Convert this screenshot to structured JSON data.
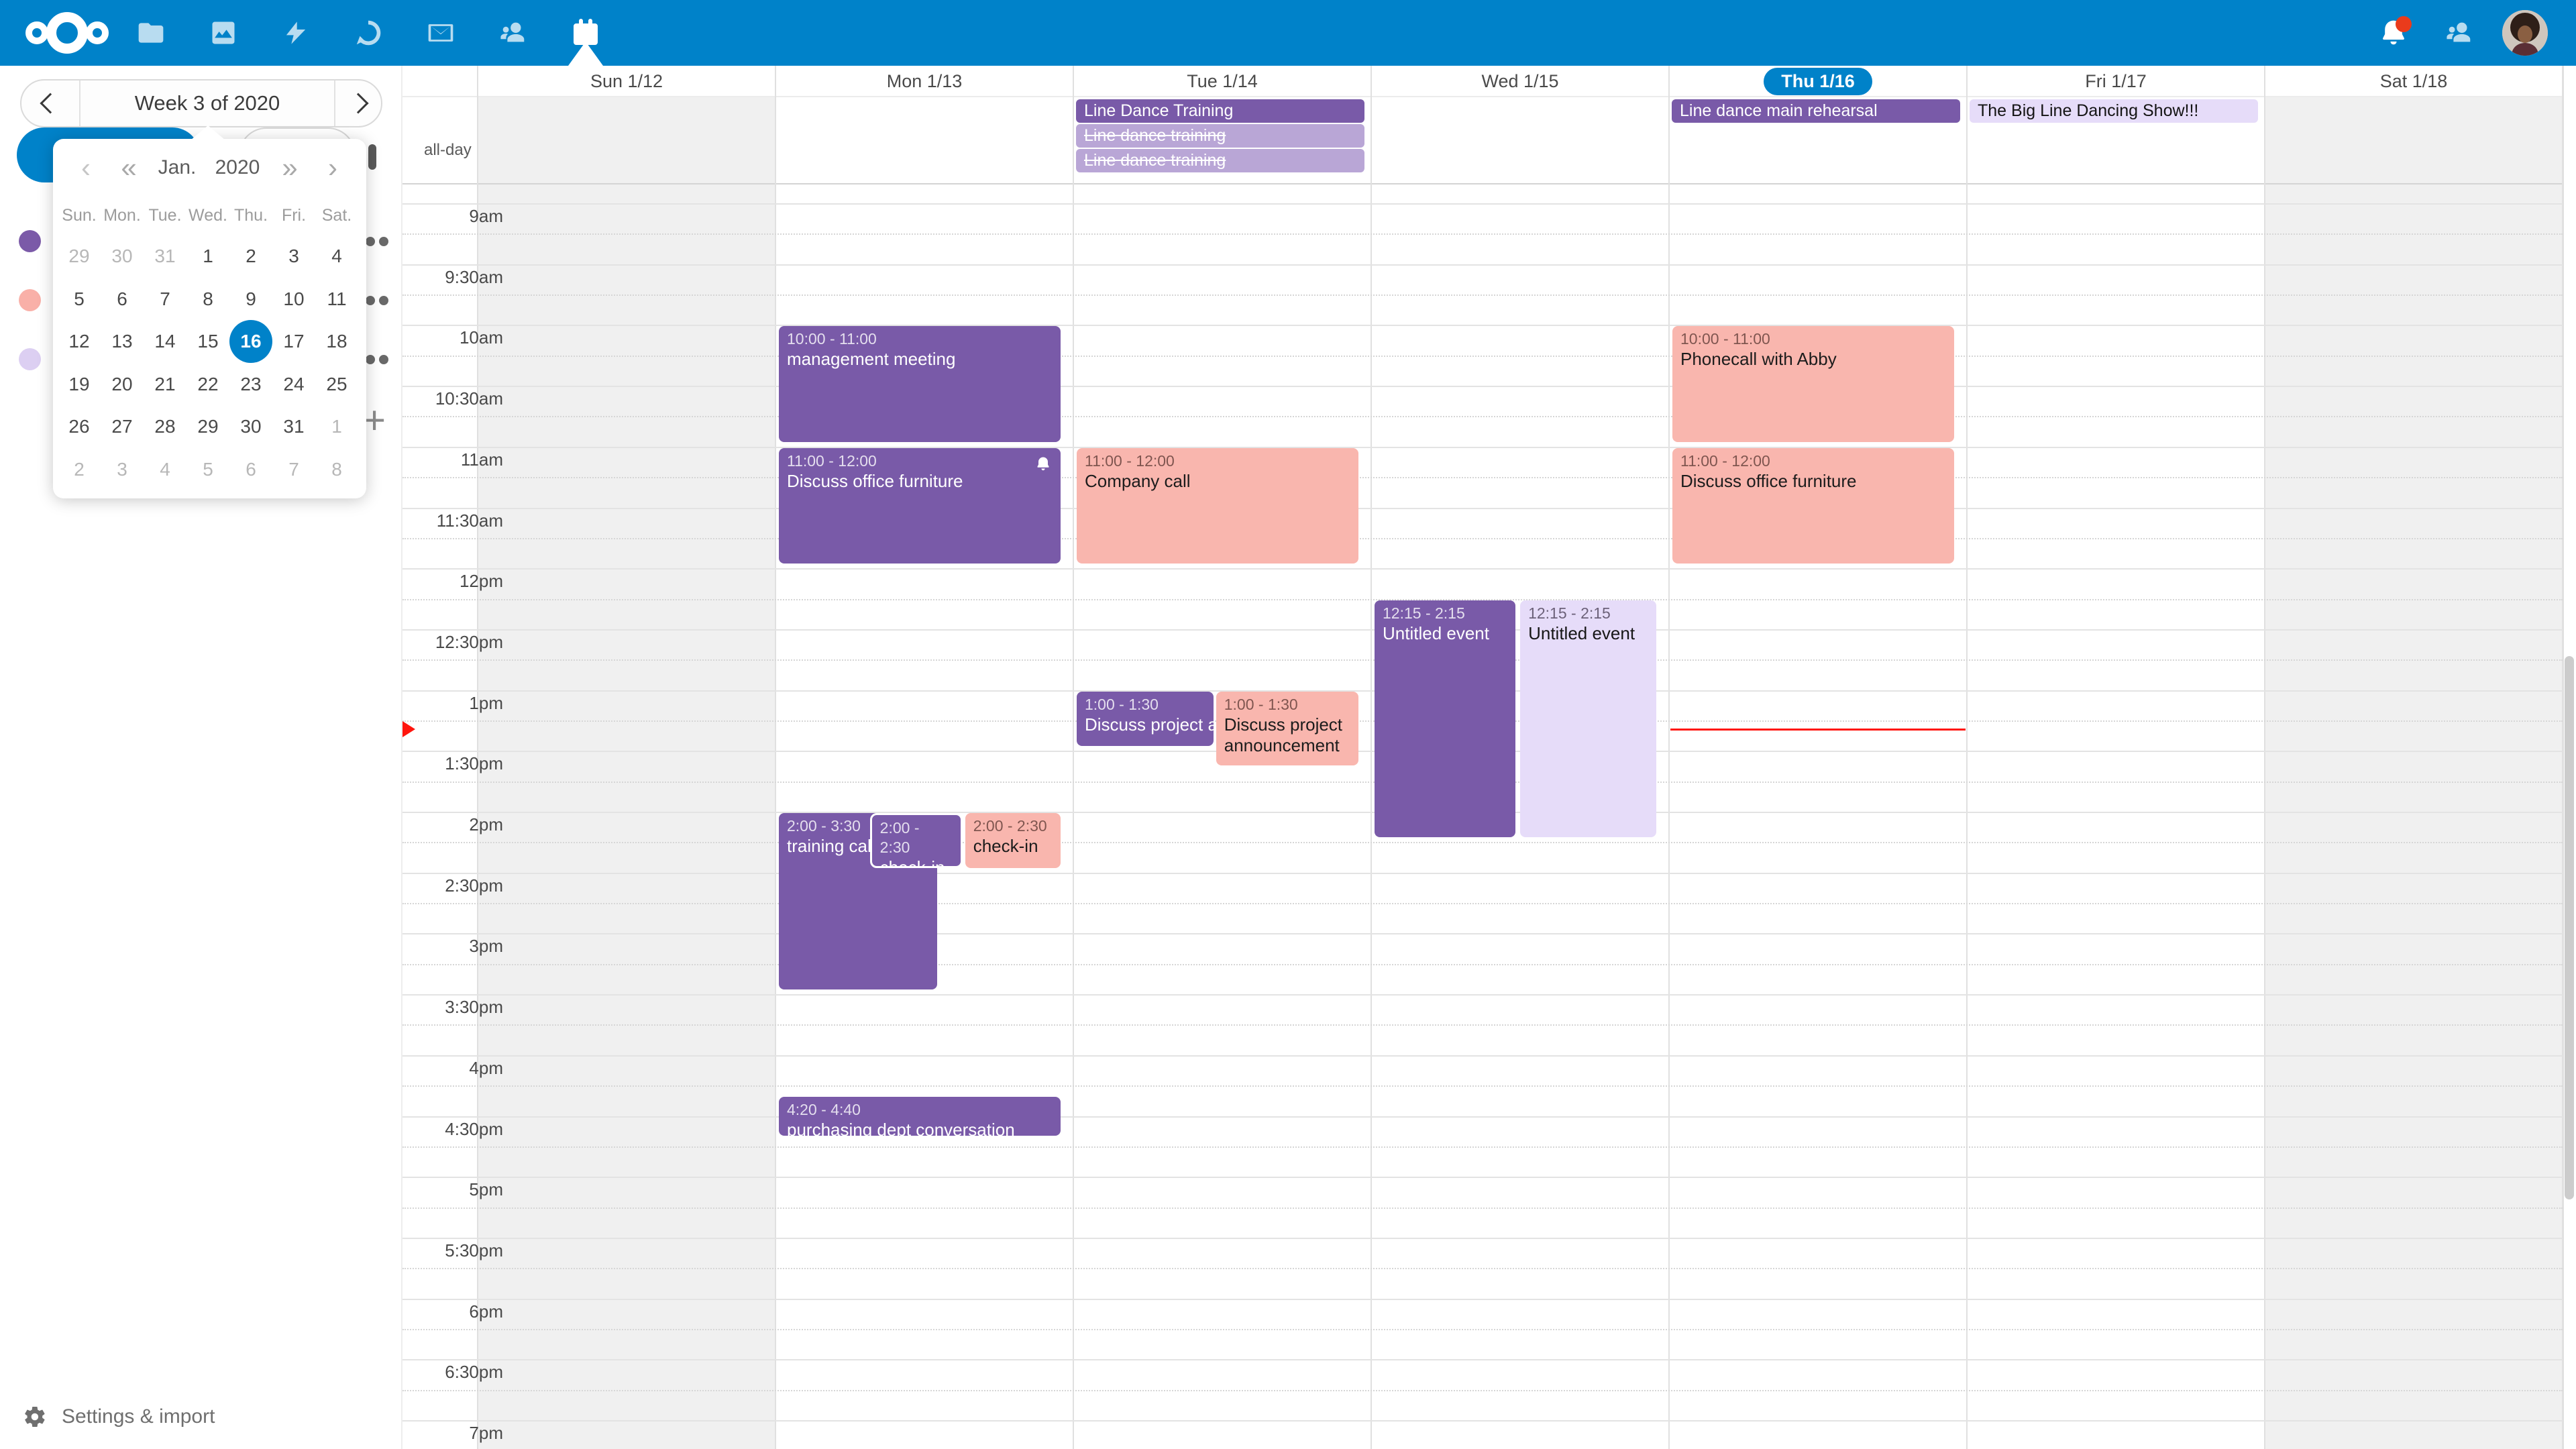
{
  "colors": {
    "accent": "#0082c9",
    "purple": "#795aa8",
    "light_purple": "#b9a6d6",
    "lavender": "#e6dcf9",
    "pink": "#f9b6ae",
    "now_indicator": "#ff150d",
    "notification_dot": "#ea3b1c"
  },
  "topbar": {
    "apps": [
      "files",
      "photos",
      "activity",
      "talk",
      "mail",
      "contacts",
      "calendar"
    ],
    "active_app": "calendar"
  },
  "sidebar": {
    "week_label": "Week 3 of 2020",
    "calendars": [
      {
        "color": "#7b5aa8"
      },
      {
        "color": "#f9b0a8"
      },
      {
        "color": "#dccff2"
      }
    ],
    "settings_label": "Settings & import"
  },
  "datepicker": {
    "month": "Jan.",
    "year": "2020",
    "prev_glyph": "‹",
    "prev_year_glyph": "«",
    "next_year_glyph": "»",
    "next_glyph": "›",
    "weekdays": [
      "Sun.",
      "Mon.",
      "Tue.",
      "Wed.",
      "Thu.",
      "Fri.",
      "Sat."
    ],
    "selected_day": 16,
    "days": [
      {
        "n": 29,
        "m": 1
      },
      {
        "n": 30,
        "m": 1
      },
      {
        "n": 31,
        "m": 1
      },
      {
        "n": 1
      },
      {
        "n": 2
      },
      {
        "n": 3
      },
      {
        "n": 4
      },
      {
        "n": 5
      },
      {
        "n": 6
      },
      {
        "n": 7
      },
      {
        "n": 8
      },
      {
        "n": 9
      },
      {
        "n": 10
      },
      {
        "n": 11
      },
      {
        "n": 12
      },
      {
        "n": 13
      },
      {
        "n": 14
      },
      {
        "n": 15
      },
      {
        "n": 16,
        "s": 1
      },
      {
        "n": 17
      },
      {
        "n": 18
      },
      {
        "n": 19
      },
      {
        "n": 20
      },
      {
        "n": 21
      },
      {
        "n": 22
      },
      {
        "n": 23
      },
      {
        "n": 24
      },
      {
        "n": 25
      },
      {
        "n": 26
      },
      {
        "n": 27
      },
      {
        "n": 28
      },
      {
        "n": 29
      },
      {
        "n": 30
      },
      {
        "n": 31
      },
      {
        "n": 1,
        "m": 1
      },
      {
        "n": 2,
        "m": 1
      },
      {
        "n": 3,
        "m": 1
      },
      {
        "n": 4,
        "m": 1
      },
      {
        "n": 5,
        "m": 1
      },
      {
        "n": 6,
        "m": 1
      },
      {
        "n": 7,
        "m": 1
      },
      {
        "n": 8,
        "m": 1
      }
    ]
  },
  "week": {
    "allday_label": "all-day",
    "days": [
      {
        "label": "Sun 1/12",
        "weekend": true
      },
      {
        "label": "Mon 1/13"
      },
      {
        "label": "Tue 1/14"
      },
      {
        "label": "Wed 1/15"
      },
      {
        "label": "Thu 1/16",
        "today": true
      },
      {
        "label": "Fri 1/17"
      },
      {
        "label": "Sat 1/18",
        "weekend": true
      }
    ],
    "time_labels": [
      "9am",
      "9:30am",
      "10am",
      "10:30am",
      "11am",
      "11:30am",
      "12pm",
      "12:30pm",
      "1pm",
      "1:30pm",
      "2pm",
      "2:30pm",
      "3pm",
      "3:30pm",
      "4pm",
      "4:30pm",
      "5pm",
      "5:30pm",
      "6pm",
      "6:30pm",
      "7pm"
    ],
    "allday_events": [
      {
        "day": 2,
        "row": 0,
        "title": "Line Dance Training",
        "style": "purple"
      },
      {
        "day": 2,
        "row": 1,
        "title": "Line dance training",
        "style": "light-purple",
        "strike": true
      },
      {
        "day": 2,
        "row": 2,
        "title": "Line dance training",
        "style": "light-purple",
        "strike": true
      },
      {
        "day": 4,
        "row": 0,
        "title": "Line dance main rehearsal",
        "style": "purple"
      },
      {
        "day": 5,
        "row": 0,
        "title": "The Big Line Dancing Show!!!",
        "style": "lavender"
      }
    ],
    "events": [
      {
        "day": 1,
        "time": "10:00 - 11:00",
        "title": "management meeting",
        "style": "purple",
        "start": 600,
        "end": 660
      },
      {
        "day": 1,
        "time": "11:00 - 12:00",
        "title": "Discuss office furniture",
        "style": "purple",
        "start": 660,
        "end": 720,
        "bell": true
      },
      {
        "day": 1,
        "time": "2:00 - 3:30",
        "title": "training call",
        "style": "purple",
        "start": 840,
        "end": 930,
        "x": 0,
        "w": 0.565
      },
      {
        "day": 1,
        "time": "2:00 - 2:30",
        "title": "check-in",
        "style": "purple",
        "start": 840,
        "end": 870,
        "x": 0.32,
        "w": 0.335,
        "whiteBorder": true
      },
      {
        "day": 1,
        "time": "2:00 - 2:30",
        "title": "check-in",
        "style": "pink",
        "start": 840,
        "end": 870,
        "x": 0.655,
        "w": 0.345
      },
      {
        "day": 1,
        "time": "4:20 - 4:40",
        "title": "purchasing dept conversation",
        "style": "purple",
        "start": 980,
        "end": 1000,
        "minH": 58
      },
      {
        "day": 2,
        "time": "11:00 - 12:00",
        "title": "Company call",
        "style": "pink",
        "start": 660,
        "end": 720
      },
      {
        "day": 2,
        "time": "1:00 - 1:30",
        "title": "Discuss project announcement",
        "style": "purple",
        "start": 780,
        "end": 810,
        "x": 0,
        "w": 0.49,
        "nowrap": true
      },
      {
        "day": 2,
        "time": "1:00 - 1:30",
        "title": "Discuss project announcement",
        "style": "pink",
        "start": 780,
        "end": 810,
        "x": 0.49,
        "w": 0.51,
        "minH": 110
      },
      {
        "day": 3,
        "time": "12:15 - 2:15",
        "title": "Untitled event",
        "style": "purple",
        "start": 735,
        "end": 855,
        "x": 0,
        "w": 0.505
      },
      {
        "day": 3,
        "time": "12:15 - 2:15",
        "title": "Untitled event",
        "style": "lavender",
        "start": 735,
        "end": 855,
        "x": 0.512,
        "w": 0.488
      },
      {
        "day": 4,
        "time": "10:00 - 11:00",
        "title": "Phonecall with Abby",
        "style": "pink",
        "start": 600,
        "end": 660
      },
      {
        "day": 4,
        "time": "11:00 - 12:00",
        "title": "Discuss office furniture",
        "style": "pink",
        "start": 660,
        "end": 720
      }
    ],
    "now": {
      "day": 4,
      "minutes": 799
    }
  }
}
